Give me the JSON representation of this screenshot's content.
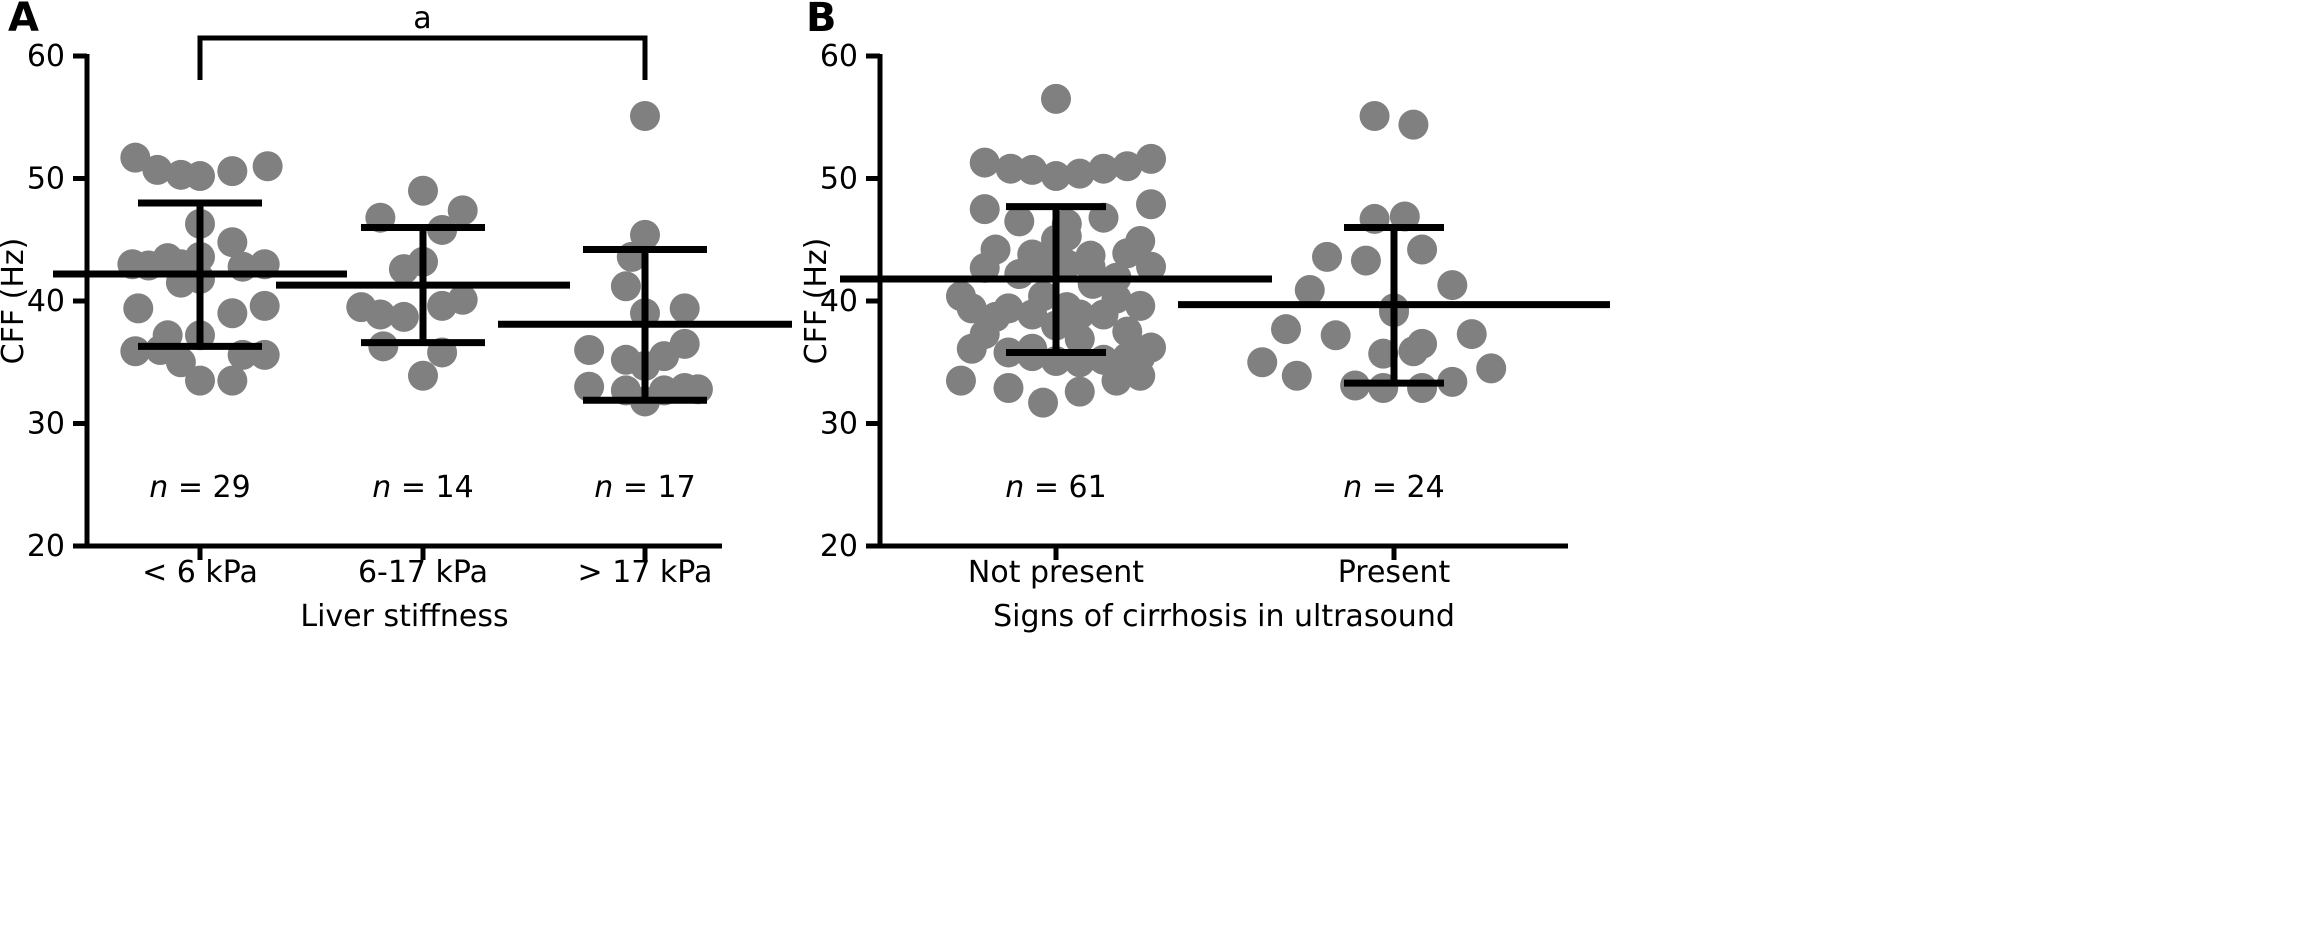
{
  "chart_data": [
    {
      "panel": "A",
      "type": "scatter",
      "title": "",
      "xlabel": "Liver stiffness",
      "ylabel": "CFF (Hz)",
      "ylim": [
        20,
        60
      ],
      "yticks": [
        "20",
        "30",
        "40",
        "50",
        "60"
      ],
      "grid": false,
      "categories": [
        "< 6 kPa",
        "6-17 kPa",
        "> 17 kPa"
      ],
      "n_labels": [
        {
          "prefix": "n",
          "text": " = 29"
        },
        {
          "prefix": "n",
          "text": " = 14"
        },
        {
          "prefix": "n",
          "text": " = 17"
        }
      ],
      "significance": {
        "label": "a",
        "from": 0,
        "to": 2
      },
      "groups": [
        {
          "mean": 42.2,
          "sd_low": 36.3,
          "sd_high": 48.0,
          "points": [
            [
              -0.44,
              51.7
            ],
            [
              -0.46,
              43.0
            ],
            [
              -0.42,
              39.4
            ],
            [
              -0.44,
              35.9
            ],
            [
              -0.29,
              50.7
            ],
            [
              -0.27,
              36.0
            ],
            [
              -0.22,
              43.5
            ],
            [
              -0.22,
              37.2
            ],
            [
              -0.13,
              50.3
            ],
            [
              -0.13,
              35.0
            ],
            [
              -0.13,
              43.0
            ],
            [
              -0.13,
              41.5
            ],
            [
              0.0,
              50.2
            ],
            [
              0.0,
              33.5
            ],
            [
              0.0,
              46.3
            ],
            [
              0.0,
              43.6
            ],
            [
              0.0,
              41.8
            ],
            [
              0.0,
              37.2
            ],
            [
              0.22,
              50.6
            ],
            [
              0.22,
              33.5
            ],
            [
              0.22,
              44.8
            ],
            [
              0.22,
              39.0
            ],
            [
              0.29,
              42.8
            ],
            [
              0.29,
              35.6
            ],
            [
              0.46,
              51.0
            ],
            [
              0.44,
              43.0
            ],
            [
              0.44,
              39.6
            ],
            [
              0.44,
              35.6
            ],
            [
              -0.35,
              42.9
            ]
          ]
        },
        {
          "mean": 41.3,
          "sd_low": 36.6,
          "sd_high": 46.0,
          "points": [
            [
              -0.29,
              46.8
            ],
            [
              -0.42,
              39.5
            ],
            [
              -0.29,
              38.9
            ],
            [
              -0.27,
              36.3
            ],
            [
              -0.13,
              42.6
            ],
            [
              -0.13,
              38.7
            ],
            [
              0.0,
              49.0
            ],
            [
              0.0,
              43.2
            ],
            [
              0.0,
              33.9
            ],
            [
              0.13,
              35.8
            ],
            [
              0.13,
              39.6
            ],
            [
              0.27,
              47.4
            ],
            [
              0.27,
              40.1
            ],
            [
              0.13,
              45.8
            ]
          ]
        },
        {
          "mean": 38.1,
          "sd_low": 31.9,
          "sd_high": 44.2,
          "points": [
            [
              0.0,
              55.1
            ],
            [
              0.0,
              45.4
            ],
            [
              -0.09,
              43.6
            ],
            [
              -0.13,
              41.2
            ],
            [
              0.0,
              39.0
            ],
            [
              0.27,
              39.4
            ],
            [
              -0.38,
              36.0
            ],
            [
              -0.13,
              35.2
            ],
            [
              0.0,
              34.7
            ],
            [
              0.13,
              35.5
            ],
            [
              0.27,
              36.5
            ],
            [
              -0.38,
              33.0
            ],
            [
              -0.13,
              32.7
            ],
            [
              0.0,
              31.8
            ],
            [
              0.13,
              32.7
            ],
            [
              0.27,
              32.9
            ],
            [
              0.36,
              32.8
            ]
          ]
        }
      ]
    },
    {
      "panel": "B",
      "type": "scatter",
      "title": "",
      "xlabel": "Signs of cirrhosis in ultrasound",
      "ylabel": "CFF (Hz)",
      "ylim": [
        20,
        60
      ],
      "yticks": [
        "20",
        "30",
        "40",
        "50",
        "60"
      ],
      "grid": false,
      "categories": [
        "Not present",
        "Present"
      ],
      "n_labels": [
        {
          "prefix": "n",
          "text": " = 61"
        },
        {
          "prefix": "n",
          "text": " = 24"
        }
      ],
      "groups": [
        {
          "mean": 41.8,
          "sd_low": 35.8,
          "sd_high": 47.7,
          "points": [
            [
              0.0,
              56.5
            ],
            [
              -0.33,
              51.3
            ],
            [
              -0.21,
              50.8
            ],
            [
              -0.11,
              50.7
            ],
            [
              0.0,
              50.2
            ],
            [
              0.11,
              50.4
            ],
            [
              0.22,
              50.8
            ],
            [
              0.33,
              51.0
            ],
            [
              0.44,
              51.6
            ],
            [
              -0.33,
              47.5
            ],
            [
              -0.17,
              46.5
            ],
            [
              0.05,
              46.3
            ],
            [
              0.22,
              46.8
            ],
            [
              0.44,
              47.9
            ],
            [
              -0.28,
              44.2
            ],
            [
              -0.11,
              43.8
            ],
            [
              0.0,
              45.0
            ],
            [
              0.05,
              45.3
            ],
            [
              0.16,
              43.7
            ],
            [
              0.33,
              43.9
            ],
            [
              0.39,
              44.9
            ],
            [
              -0.33,
              42.7
            ],
            [
              -0.17,
              42.2
            ],
            [
              -0.06,
              43.1
            ],
            [
              0.05,
              43.0
            ],
            [
              0.16,
              42.8
            ],
            [
              0.28,
              41.9
            ],
            [
              0.44,
              42.8
            ],
            [
              -0.44,
              40.4
            ],
            [
              -0.22,
              39.4
            ],
            [
              -0.06,
              40.4
            ],
            [
              0.05,
              39.5
            ],
            [
              0.11,
              38.9
            ],
            [
              0.28,
              40.2
            ],
            [
              0.39,
              39.6
            ],
            [
              -0.33,
              37.3
            ],
            [
              -0.11,
              38.9
            ],
            [
              0.0,
              38.0
            ],
            [
              0.06,
              38.4
            ],
            [
              0.22,
              38.9
            ],
            [
              0.33,
              37.5
            ],
            [
              -0.39,
              36.1
            ],
            [
              -0.22,
              35.8
            ],
            [
              -0.11,
              35.5
            ],
            [
              0.0,
              35.1
            ],
            [
              0.11,
              35.0
            ],
            [
              0.22,
              35.2
            ],
            [
              0.33,
              35.4
            ],
            [
              0.44,
              36.2
            ],
            [
              -0.44,
              33.5
            ],
            [
              -0.22,
              32.9
            ],
            [
              -0.06,
              31.7
            ],
            [
              0.11,
              32.6
            ],
            [
              0.28,
              33.5
            ],
            [
              0.39,
              33.9
            ],
            [
              -0.11,
              36.1
            ],
            [
              0.11,
              36.9
            ],
            [
              -0.39,
              39.4
            ],
            [
              -0.28,
              38.7
            ],
            [
              0.17,
              41.4
            ],
            [
              0.39,
              35.4
            ]
          ]
        },
        {
          "mean": 39.7,
          "sd_low": 33.3,
          "sd_high": 46.0,
          "points": [
            [
              -0.09,
              55.1
            ],
            [
              0.09,
              54.4
            ],
            [
              -0.09,
              46.7
            ],
            [
              0.05,
              46.9
            ],
            [
              -0.31,
              43.6
            ],
            [
              0.13,
              44.2
            ],
            [
              -0.13,
              43.3
            ],
            [
              -0.39,
              40.9
            ],
            [
              0.27,
              41.3
            ],
            [
              0.0,
              39.1
            ],
            [
              0.0,
              39.4
            ],
            [
              -0.5,
              37.7
            ],
            [
              -0.27,
              37.2
            ],
            [
              0.13,
              36.5
            ],
            [
              0.36,
              37.3
            ],
            [
              -0.05,
              35.7
            ],
            [
              0.09,
              35.9
            ],
            [
              -0.61,
              35.0
            ],
            [
              0.45,
              34.5
            ],
            [
              -0.45,
              33.9
            ],
            [
              -0.18,
              33.1
            ],
            [
              -0.05,
              32.9
            ],
            [
              0.13,
              32.9
            ],
            [
              0.27,
              33.4
            ]
          ]
        }
      ]
    }
  ]
}
